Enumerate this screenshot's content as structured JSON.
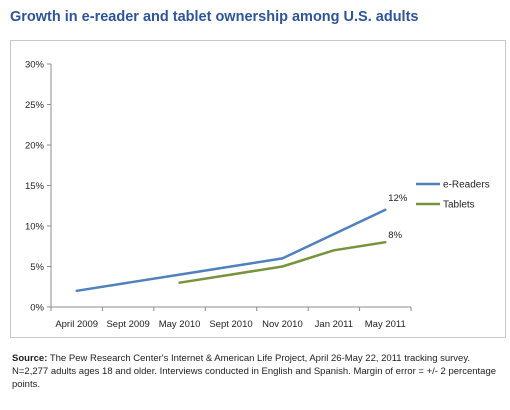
{
  "title": "Growth in e-reader and tablet ownership among U.S. adults",
  "source_label": "Source:",
  "source_text": "The Pew Research Center's Internet & American Life Project, April 26-May 22, 2011 tracking survey. N=2,277 adults ages 18 and older. Interviews conducted in English and Spanish. Margin of error = +/- 2 percentage points.",
  "chart_data": {
    "type": "line",
    "categories": [
      "April 2009",
      "Sept 2009",
      "May 2010",
      "Sept 2010",
      "Nov 2010",
      "Jan 2011",
      "May 2011"
    ],
    "y_ticks": [
      "0%",
      "5%",
      "10%",
      "15%",
      "20%",
      "25%",
      "30%"
    ],
    "ylim": [
      0,
      30
    ],
    "grid": false,
    "legend_position": "right",
    "series": [
      {
        "name": "e-Readers",
        "color": "#4f81bd",
        "values": [
          2,
          3,
          4,
          5,
          6,
          9,
          12
        ],
        "end_label": "12%"
      },
      {
        "name": "Tablets",
        "color": "#77933c",
        "values": [
          null,
          null,
          3,
          4,
          5,
          7,
          8
        ],
        "end_label": "8%"
      }
    ]
  }
}
